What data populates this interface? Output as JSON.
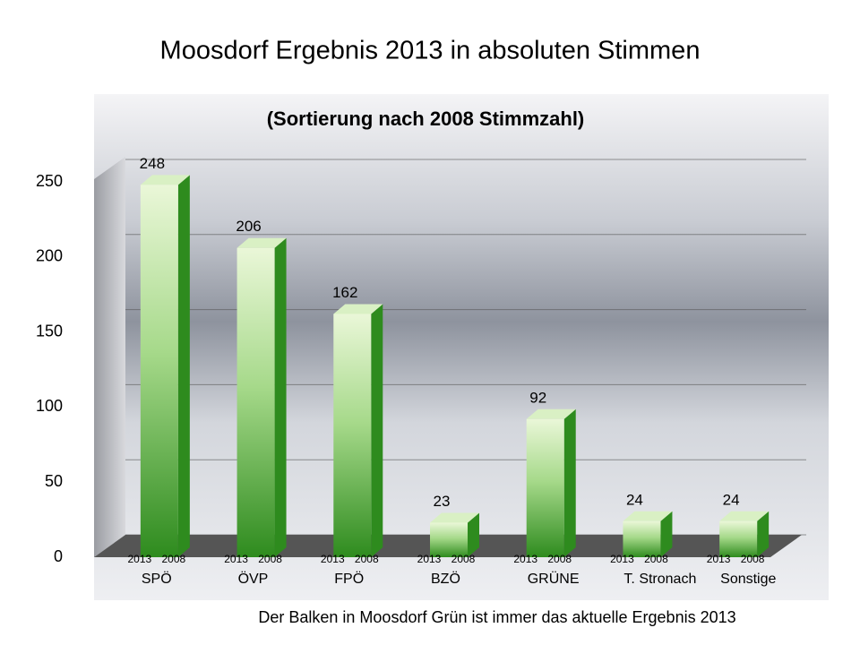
{
  "chart_data": {
    "type": "bar",
    "title": "Moosdorf  Ergebnis 2013 in absoluten Stimmen",
    "subtitle": "(Sortierung nach 2008 Stimmzahl)",
    "footnote": "Der Balken in Moosdorf Grün ist immer das aktuelle Ergebnis 2013",
    "categories": [
      "SPÖ",
      "ÖVP",
      "FPÖ",
      "BZÖ",
      "GRÜNE",
      "T. Stronach",
      "Sonstige"
    ],
    "period_labels": [
      "2013",
      "2008"
    ],
    "values": [
      248,
      206,
      162,
      23,
      92,
      24,
      24
    ],
    "color": "#2e8b1e",
    "ylim": [
      0,
      250
    ],
    "yticks": [
      0,
      50,
      100,
      150,
      200,
      250
    ],
    "grid": true
  }
}
